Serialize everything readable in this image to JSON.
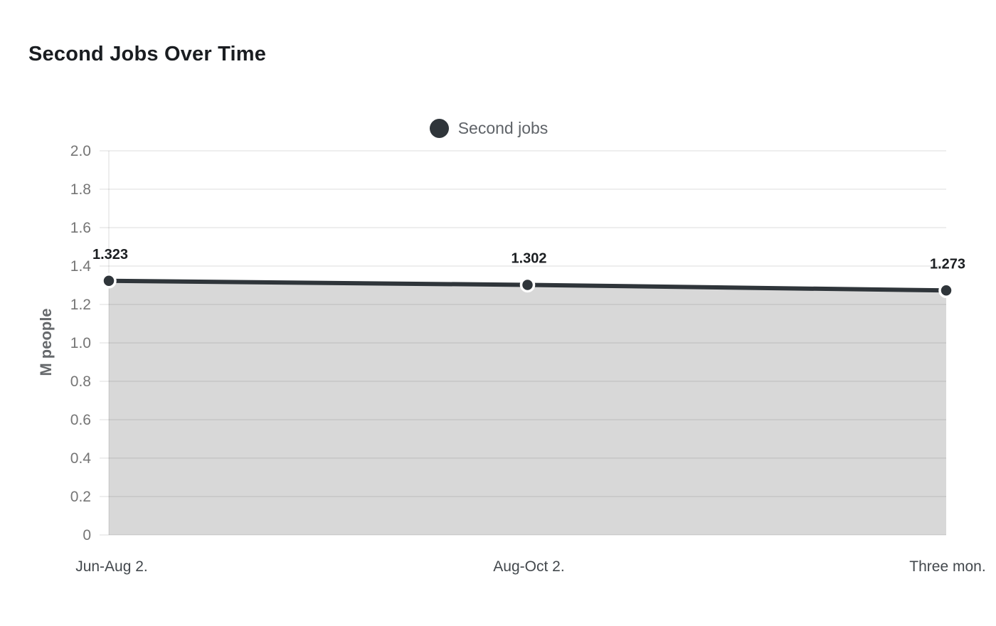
{
  "title": "Second Jobs Over Time",
  "legend": {
    "label": "Second jobs"
  },
  "chart_data": {
    "type": "area",
    "title": "Second Jobs Over Time",
    "xlabel": "",
    "ylabel": "M people",
    "categories": [
      "Jun-Aug 2.",
      "Aug-Oct 2.",
      "Three mon."
    ],
    "series": [
      {
        "name": "Second jobs",
        "values": [
          1.323,
          1.302,
          1.273
        ]
      }
    ],
    "data_labels": [
      "1.323",
      "1.302",
      "1.273"
    ],
    "ylim": [
      0,
      2
    ],
    "ytick_values": [
      0,
      0.2,
      0.4,
      0.6,
      0.8,
      1.0,
      1.2,
      1.4,
      1.6,
      1.8,
      2.0
    ],
    "ytick_labels": [
      "0",
      "0.2",
      "0.4",
      "0.6",
      "0.8",
      "1.0",
      "1.2",
      "1.4",
      "1.6",
      "1.8",
      "2.0"
    ],
    "grid": true,
    "legend_position": "top-center",
    "colors": {
      "line": "#2f353a",
      "point": "#2f353a",
      "point_border": "#ffffff",
      "area": "#d8d8d8",
      "grid": "rgba(0,0,0,0.085)",
      "y_tick_text": "#757575",
      "x_tick_text": "#43484d",
      "data_label_text": "#1b1e21",
      "title_text": "#1a1d21",
      "legend_text": "#5f6368"
    }
  }
}
